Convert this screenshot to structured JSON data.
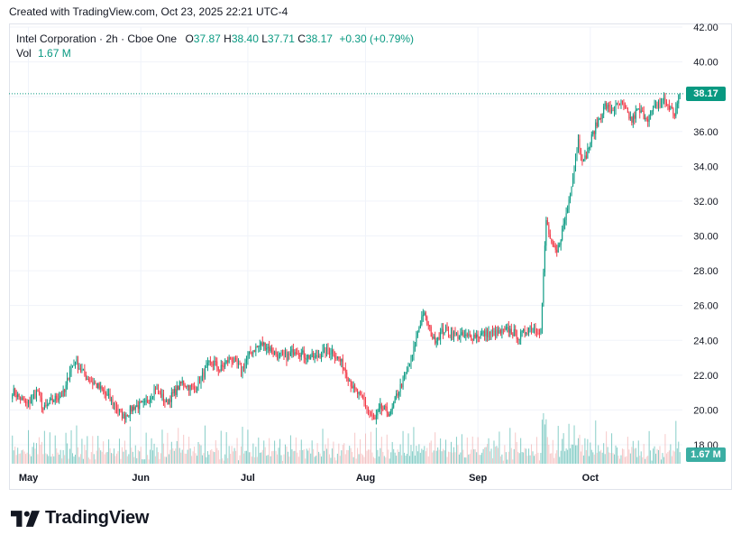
{
  "caption": "Created with TradingView.com, Oct 23, 2025 22:21 UTC-4",
  "brand": {
    "name": "TradingView",
    "logo_icon": "tradingview-logo-icon"
  },
  "legend": {
    "symbol": "Intel Corporation · 2h · Cboe One",
    "open_label": "O",
    "open": "37.87",
    "high_label": "H",
    "high": "38.40",
    "low_label": "L",
    "low": "37.71",
    "close_label": "C",
    "close": "38.17",
    "change": "+0.30 (+0.79%)",
    "volume_label": "Vol",
    "volume": "1.67 M"
  },
  "colors": {
    "up": "#089981",
    "down": "#f23645",
    "vol_up": "#26a69a",
    "vol_down": "#ef9a9a",
    "grid": "#f0f3fa",
    "text": "#131722"
  },
  "price_tag": "38.17",
  "volume_tag": "1.67 M",
  "chart_data": {
    "type": "candlestick",
    "y_axis": {
      "ticks": [
        "42.00",
        "40.00",
        "38.00",
        "36.00",
        "34.00",
        "32.00",
        "30.00",
        "28.00",
        "26.00",
        "24.00",
        "22.00",
        "20.00",
        "18.00"
      ],
      "range": [
        18,
        42
      ],
      "position": "right"
    },
    "x_axis": {
      "ticks": [
        "May",
        "Jun",
        "Jul",
        "Aug",
        "Sep",
        "Oct"
      ]
    },
    "last_price": 38.17,
    "grid": true,
    "anchors": [
      [
        "Apr 28",
        21.1
      ],
      [
        "Apr 30",
        20.3
      ],
      [
        "May 2",
        21.1
      ],
      [
        "May 5",
        20.0
      ],
      [
        "May 7",
        20.6
      ],
      [
        "May 9",
        21.0
      ],
      [
        "May 12",
        22.3
      ],
      [
        "May 13",
        22.8
      ],
      [
        "May 15",
        21.9
      ],
      [
        "May 19",
        21.4
      ],
      [
        "May 21",
        20.8
      ],
      [
        "May 23",
        20.0
      ],
      [
        "May 27",
        19.6
      ],
      [
        "May 29",
        20.2
      ],
      [
        "Jun 2",
        20.3
      ],
      [
        "Jun 4",
        21.3
      ],
      [
        "Jun 6",
        20.4
      ],
      [
        "Jun 9",
        20.8
      ],
      [
        "Jun 11",
        21.6
      ],
      [
        "Jun 13",
        21.2
      ],
      [
        "Jun 16",
        21.6
      ],
      [
        "Jun 18",
        22.6
      ],
      [
        "Jun 20",
        22.7
      ],
      [
        "Jun 23",
        22.3
      ],
      [
        "Jun 25",
        23.0
      ],
      [
        "Jun 27",
        22.3
      ],
      [
        "Jul 1",
        23.4
      ],
      [
        "Jul 3",
        23.8
      ],
      [
        "Jul 7",
        23.6
      ],
      [
        "Jul 9",
        23.1
      ],
      [
        "Jul 11",
        23.1
      ],
      [
        "Jul 14",
        23.5
      ],
      [
        "Jul 16",
        23.1
      ],
      [
        "Jul 18",
        23.0
      ],
      [
        "Jul 21",
        23.3
      ],
      [
        "Jul 23",
        23.4
      ],
      [
        "Jul 25",
        22.6
      ],
      [
        "Jul 29",
        21.2
      ],
      [
        "Jul 31",
        20.5
      ],
      [
        "Aug 1",
        19.8
      ],
      [
        "Aug 4",
        19.4
      ],
      [
        "Aug 5",
        20.1
      ],
      [
        "Aug 7",
        19.8
      ],
      [
        "Aug 8",
        20.8
      ],
      [
        "Aug 11",
        21.5
      ],
      [
        "Aug 13",
        23.1
      ],
      [
        "Aug 14",
        24.5
      ],
      [
        "Aug 15",
        25.6
      ],
      [
        "Aug 18",
        24.8
      ],
      [
        "Aug 19",
        24.0
      ],
      [
        "Aug 21",
        24.6
      ],
      [
        "Aug 25",
        24.3
      ],
      [
        "Aug 27",
        24.2
      ],
      [
        "Aug 29",
        24.3
      ],
      [
        "Sep 3",
        24.4
      ],
      [
        "Sep 5",
        24.4
      ],
      [
        "Sep 9",
        24.6
      ],
      [
        "Sep 11",
        24.2
      ],
      [
        "Sep 15",
        24.8
      ],
      [
        "Sep 17",
        24.6
      ],
      [
        "Sep 18",
        30.9
      ],
      [
        "Sep 19",
        29.4
      ],
      [
        "Sep 22",
        29.0
      ],
      [
        "Sep 24",
        31.6
      ],
      [
        "Sep 26",
        35.5
      ],
      [
        "Sep 29",
        34.2
      ],
      [
        "Oct 1",
        36.1
      ],
      [
        "Oct 3",
        37.5
      ],
      [
        "Oct 6",
        37.2
      ],
      [
        "Oct 8",
        37.6
      ],
      [
        "Oct 10",
        36.6
      ],
      [
        "Oct 13",
        37.2
      ],
      [
        "Oct 15",
        36.8
      ],
      [
        "Oct 17",
        37.6
      ],
      [
        "Oct 20",
        37.8
      ],
      [
        "Oct 22",
        37.0
      ],
      [
        "Oct 23",
        38.17
      ]
    ]
  }
}
